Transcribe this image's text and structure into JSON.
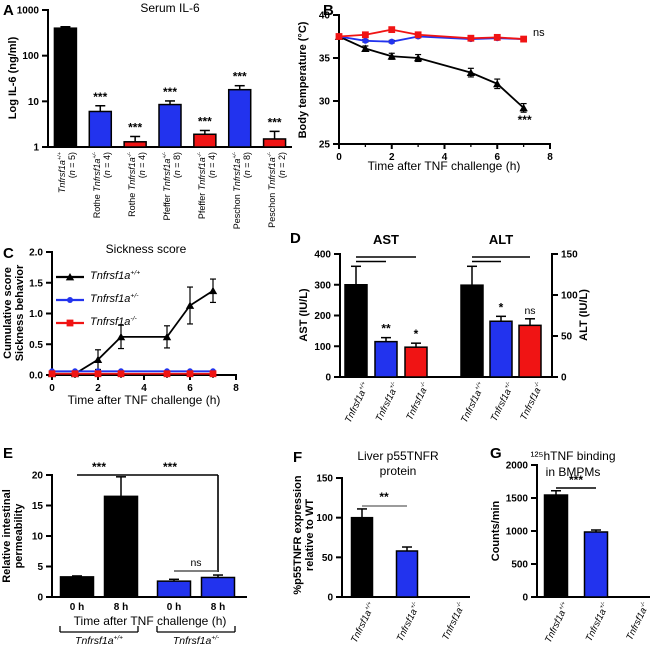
{
  "figure": {
    "colors": {
      "black": "#000000",
      "blue": "#2233ee",
      "red": "#f01414",
      "gray": "#7a7a7a"
    }
  },
  "genotype_labels": {
    "wt": {
      "gene": "Tnfrsf1a",
      "sup": "+/+"
    },
    "het": {
      "gene": "Tnfrsf1a",
      "sup": "+/-"
    },
    "ko": {
      "gene": "Tnfrsf1a",
      "sup": "-/-"
    }
  },
  "panels": {
    "A": {
      "letter": "A",
      "title": "Serum IL-6",
      "ylabel": "Log IL-6 (ng/ml)"
    },
    "B": {
      "letter": "B",
      "ylabel": "Body temperature (°C)",
      "xlabel": "Time after TNF challenge (h)",
      "ns_label": "ns",
      "sig_label": "***"
    },
    "C": {
      "letter": "C",
      "title": "Sickness score",
      "ylabel_lines": [
        "Cumulative score",
        "Sickness behavior"
      ],
      "xlabel": "Time after TNF challenge (h)"
    },
    "D": {
      "letter": "D",
      "left_axis_label": "AST (IU/L)",
      "right_axis_label": "ALT (IU/L)"
    },
    "E": {
      "letter": "E",
      "ylabel_lines": [
        "Relative intestinal",
        "permeability"
      ],
      "xlabel": "Time after TNF challenge (h)"
    },
    "F": {
      "letter": "F",
      "title_lines": [
        "Liver p55TNFR",
        "protein"
      ],
      "ylabel_lines": [
        "%p55TNFR expression",
        "relative to WT"
      ]
    },
    "G": {
      "letter": "G",
      "title_lines": [
        "¹²⁵hTNF binding",
        "in BMPMs"
      ],
      "ylabel": "Counts/min"
    }
  },
  "chart_data": [
    {
      "panel": "A",
      "type": "bar",
      "yscale": "log",
      "ylim": [
        1,
        1000
      ],
      "yticks": [
        1,
        10,
        100,
        1000
      ],
      "ytick_labels": [
        "1",
        "10",
        "100",
        "1000"
      ],
      "bars": [
        {
          "prefix": "",
          "genotype": "wt",
          "n": "(n = 5)",
          "value": 400,
          "err_top": 430,
          "color": "black",
          "sig": ""
        },
        {
          "prefix": "Rothe",
          "genotype": "het",
          "n": "(n = 4)",
          "value": 6,
          "err_top": 8,
          "color": "blue",
          "sig": "***"
        },
        {
          "prefix": "Rothe",
          "genotype": "ko",
          "n": "(n = 4)",
          "value": 1.3,
          "err_top": 1.7,
          "color": "red",
          "sig": "***"
        },
        {
          "prefix": "Pfeffer",
          "genotype": "het",
          "n": "(n = 8)",
          "value": 8.5,
          "err_top": 10.2,
          "color": "blue",
          "sig": "***"
        },
        {
          "prefix": "Pfeffer",
          "genotype": "ko",
          "n": "(n = 4)",
          "value": 1.9,
          "err_top": 2.3,
          "color": "red",
          "sig": "***"
        },
        {
          "prefix": "Peschon",
          "genotype": "het",
          "n": "(n = 8)",
          "value": 18,
          "err_top": 22,
          "color": "blue",
          "sig": "***"
        },
        {
          "prefix": "Peschon",
          "genotype": "ko",
          "n": "(n = 2)",
          "value": 1.5,
          "err_top": 2.2,
          "color": "red",
          "sig": "***"
        }
      ]
    },
    {
      "panel": "B",
      "type": "line",
      "ylim": [
        25,
        40
      ],
      "yticks": [
        25,
        30,
        35,
        40
      ],
      "ytick_labels": [
        "25",
        "30",
        "35",
        "40"
      ],
      "xlim": [
        0,
        8
      ],
      "xticks": [
        0,
        2,
        4,
        6,
        8
      ],
      "xtick_labels": [
        "0",
        "2",
        "4",
        "6",
        "8"
      ],
      "xminor": [
        1,
        3,
        5,
        7
      ],
      "x": [
        0,
        1,
        2,
        3,
        5,
        6,
        7
      ],
      "series": [
        {
          "genotype": "wt",
          "color": "black",
          "marker": "triangle",
          "values": [
            37.5,
            36.1,
            35.2,
            35.0,
            33.3,
            32.0,
            29.2
          ],
          "err": [
            0.2,
            0.3,
            0.35,
            0.4,
            0.5,
            0.55,
            0.5
          ]
        },
        {
          "genotype": "het",
          "color": "blue",
          "marker": "circle",
          "values": [
            37.5,
            37.0,
            36.9,
            37.5,
            37.2,
            37.3,
            37.2
          ],
          "err": [
            0.15,
            0.15,
            0.15,
            0.15,
            0.15,
            0.15,
            0.15
          ]
        },
        {
          "genotype": "ko",
          "color": "red",
          "marker": "square",
          "values": [
            37.5,
            37.7,
            38.3,
            37.7,
            37.3,
            37.4,
            37.2
          ],
          "err": [
            0.15,
            0.2,
            0.2,
            0.2,
            0.15,
            0.15,
            0.15
          ]
        }
      ]
    },
    {
      "panel": "C",
      "type": "line",
      "ylim": [
        0,
        2
      ],
      "yticks": [
        0,
        0.5,
        1,
        1.5,
        2
      ],
      "ytick_labels": [
        "0.0",
        "0.5",
        "1.0",
        "1.5",
        "2.0"
      ],
      "xlim": [
        0,
        8
      ],
      "xticks": [
        0,
        2,
        4,
        6,
        8
      ],
      "xtick_labels": [
        "0",
        "2",
        "4",
        "6",
        "8"
      ],
      "xminor": [
        1,
        3,
        5,
        7
      ],
      "x": [
        0,
        1,
        2,
        3,
        5,
        6,
        7
      ],
      "series": [
        {
          "genotype": "wt",
          "color": "black",
          "marker": "triangle",
          "values": [
            0.02,
            0.02,
            0.25,
            0.62,
            0.62,
            1.13,
            1.37
          ],
          "err": [
            0,
            0,
            0.16,
            0.19,
            0.18,
            0.3,
            0.19
          ]
        },
        {
          "genotype": "het",
          "color": "blue",
          "marker": "circle",
          "values": [
            0.06,
            0.06,
            0.06,
            0.06,
            0.06,
            0.06,
            0.06
          ],
          "err": [
            0,
            0,
            0,
            0,
            0,
            0,
            0
          ]
        },
        {
          "genotype": "ko",
          "color": "red",
          "marker": "square",
          "values": [
            0.02,
            0.02,
            0.02,
            0.02,
            0.02,
            0.02,
            0.02
          ],
          "err": [
            0,
            0,
            0,
            0,
            0,
            0,
            0
          ]
        }
      ]
    },
    {
      "panel": "D",
      "type": "grouped-bar-dual-axis",
      "left_axis": {
        "ylim": [
          0,
          400
        ],
        "yticks": [
          0,
          100,
          200,
          300,
          400
        ],
        "ytick_labels": [
          "0",
          "100",
          "200",
          "300",
          "400"
        ]
      },
      "right_axis": {
        "ylim": [
          0,
          150
        ],
        "yticks": [
          0,
          50,
          100,
          150
        ],
        "ytick_labels": [
          "0",
          "50",
          "100",
          "150"
        ]
      },
      "groups": [
        {
          "title": "AST",
          "axis": "left",
          "bars": [
            {
              "genotype": "wt",
              "value": 300,
              "err_top": 360,
              "color": "black",
              "sig": ""
            },
            {
              "genotype": "het",
              "value": 115,
              "err_top": 128,
              "color": "blue",
              "sig": "**"
            },
            {
              "genotype": "ko",
              "value": 97,
              "err_top": 110,
              "color": "red",
              "sig": "*"
            }
          ]
        },
        {
          "title": "ALT",
          "axis": "right",
          "bars": [
            {
              "genotype": "wt",
              "value": 112,
              "err_top": 135,
              "color": "black",
              "sig": ""
            },
            {
              "genotype": "het",
              "value": 68,
              "err_top": 74,
              "color": "blue",
              "sig": "*"
            },
            {
              "genotype": "ko",
              "value": 63,
              "err_top": 71,
              "color": "red",
              "sig": "ns"
            }
          ]
        }
      ]
    },
    {
      "panel": "E",
      "type": "bar",
      "ylim": [
        0,
        20
      ],
      "yticks": [
        0,
        5,
        10,
        15,
        20
      ],
      "ytick_labels": [
        "0",
        "5",
        "10",
        "15",
        "20"
      ],
      "bars": [
        {
          "label": "0 h",
          "group": "wt",
          "value": 3.3,
          "err_top": 3.45,
          "color": "black"
        },
        {
          "label": "8 h",
          "group": "wt",
          "value": 16.5,
          "err_top": 19.7,
          "color": "black"
        },
        {
          "label": "0 h",
          "group": "het",
          "value": 2.6,
          "err_top": 2.9,
          "color": "blue"
        },
        {
          "label": "8 h",
          "group": "het",
          "value": 3.2,
          "err_top": 3.6,
          "color": "blue"
        }
      ],
      "group_labels": [
        "wt",
        "het"
      ],
      "sig": [
        {
          "text": "***",
          "from": 0,
          "to": 1
        },
        {
          "text": "***",
          "from": 1,
          "to": 3
        },
        {
          "text": "ns",
          "from": 2,
          "to": 3
        }
      ]
    },
    {
      "panel": "F",
      "type": "bar",
      "ylim": [
        0,
        150
      ],
      "yticks": [
        0,
        50,
        100,
        150
      ],
      "ytick_labels": [
        "0",
        "50",
        "100",
        "150"
      ],
      "bars": [
        {
          "genotype": "wt",
          "value": 100,
          "err_top": 111,
          "color": "black",
          "sig": ""
        },
        {
          "genotype": "het",
          "value": 58,
          "err_top": 63,
          "color": "blue",
          "sig": ""
        },
        {
          "genotype": "ko",
          "value": 0,
          "err_top": null,
          "color": "red",
          "sig": ""
        }
      ],
      "sig": [
        {
          "text": "**",
          "from": 0,
          "to": 1
        }
      ]
    },
    {
      "panel": "G",
      "type": "bar",
      "ylim": [
        0,
        2000
      ],
      "yticks": [
        0,
        500,
        1000,
        1500,
        2000
      ],
      "ytick_labels": [
        "0",
        "500",
        "1000",
        "1500",
        "2000"
      ],
      "bars": [
        {
          "genotype": "wt",
          "value": 1545,
          "err_top": 1610,
          "color": "black",
          "sig": ""
        },
        {
          "genotype": "het",
          "value": 985,
          "err_top": 1015,
          "color": "blue",
          "sig": ""
        },
        {
          "genotype": "ko",
          "value": 0,
          "err_top": null,
          "color": "red",
          "sig": ""
        }
      ],
      "sig": [
        {
          "text": "***",
          "from": 0,
          "to": 1
        }
      ]
    }
  ]
}
